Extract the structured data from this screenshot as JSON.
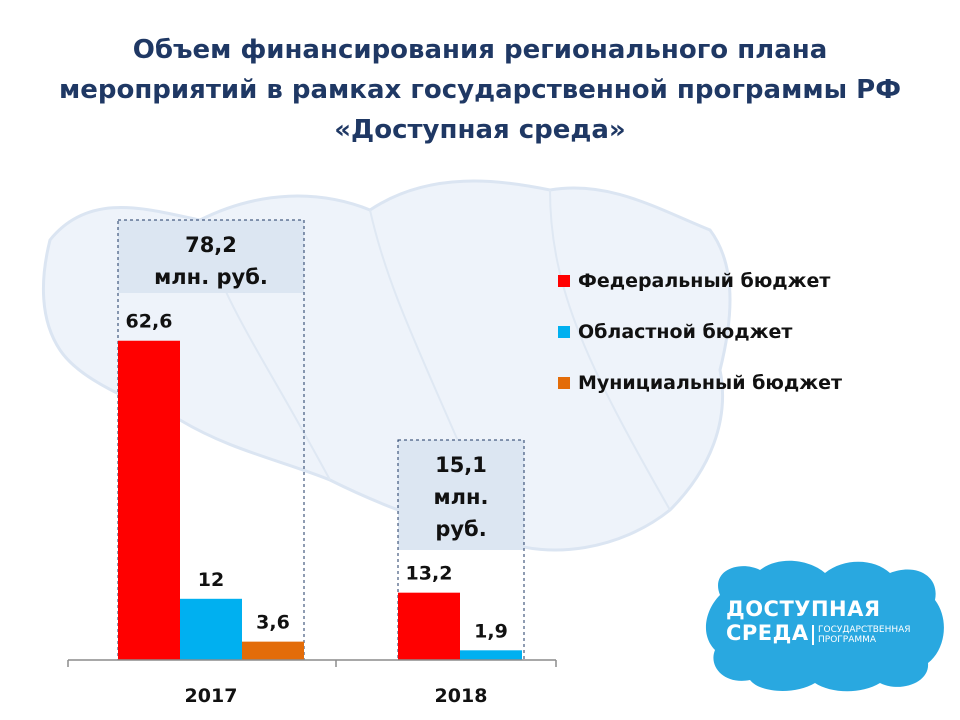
{
  "title": {
    "line1": "Объем финансирования регионального плана",
    "line2": "мероприятий в рамках государственной программы РФ",
    "line3": "«Доступная среда»"
  },
  "colors": {
    "federal": "#ff0000",
    "regional": "#00b0f0",
    "municipal": "#e36c09",
    "title": "#1f3864",
    "total_box": "#dce6f2"
  },
  "chart_data": {
    "type": "bar",
    "categories": [
      "2017",
      "2018"
    ],
    "series": [
      {
        "name": "Федеральный бюджет",
        "values": [
          62.6,
          13.2
        ],
        "labels": [
          "62,6",
          "13,2"
        ]
      },
      {
        "name": "Областной бюджет",
        "values": [
          12,
          1.9
        ],
        "labels": [
          "12",
          "1,9"
        ]
      },
      {
        "name": "Мунициальный бюджет",
        "values": [
          3.6,
          null
        ],
        "labels": [
          "3,6",
          ""
        ]
      }
    ],
    "totals": [
      {
        "value": 78.2,
        "lines": [
          "78,2",
          "млн. руб."
        ]
      },
      {
        "value": 15.1,
        "lines": [
          "15,1",
          "млн.",
          "руб."
        ]
      }
    ],
    "legend_position": "right",
    "ylim": [
      0,
      100
    ]
  },
  "logo": {
    "line1": "ДОСТУПНАЯ",
    "line2": "СРЕДА",
    "sub1": "ГОСУДАРСТВЕННАЯ",
    "sub2": "ПРОГРАММА"
  }
}
